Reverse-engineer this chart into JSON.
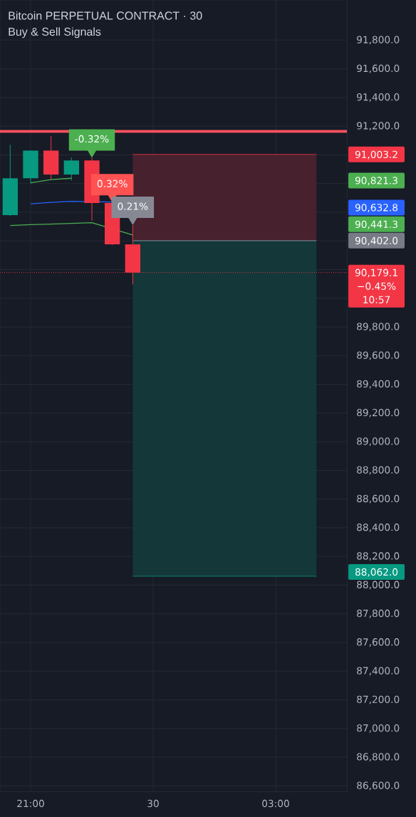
{
  "chart_data": {
    "type": "candlestick",
    "title": "Bitcoin PERPETUAL CONTRACT · 30",
    "subtitle": "Buy & Sell Signals",
    "categories": [
      null,
      "21:00",
      null,
      null,
      null,
      null,
      null,
      "30",
      null,
      null,
      null,
      null,
      null,
      "03:00",
      null,
      null,
      null
    ],
    "ohlc": [
      [
        90580,
        91070,
        90575,
        90837
      ],
      [
        90837,
        91032,
        90800,
        91030
      ],
      [
        91030,
        91130,
        90828,
        90863
      ],
      [
        90863,
        90982,
        90822,
        90961
      ],
      [
        90961,
        90980,
        90540,
        90664
      ],
      [
        90664,
        90668,
        90372,
        90376
      ],
      [
        90376,
        90510,
        90097,
        90179.1
      ],
      null,
      null,
      null,
      null,
      null,
      null,
      null,
      null,
      null,
      null
    ],
    "colors": [
      "#089981",
      "#089981",
      "#f23645",
      "#089981",
      "#f23645",
      "#f23645",
      "#f23645",
      null,
      null,
      null,
      null,
      null,
      null,
      null,
      null,
      null,
      null
    ],
    "series": [
      {
        "type": "line",
        "color": "#4caf50",
        "values": [
          null,
          90805,
          90828,
          90837,
          null,
          null,
          null,
          null,
          null,
          null,
          null,
          null,
          null,
          null,
          null,
          null,
          null
        ]
      },
      {
        "type": "line",
        "color": "#2962ff",
        "values": [
          null,
          90659,
          90669,
          90676,
          null,
          90671,
          null,
          null,
          null,
          null,
          null,
          null,
          null,
          null,
          null,
          null,
          null
        ]
      },
      {
        "type": "line",
        "color": "#4caf50",
        "values": [
          90507,
          90514,
          90517,
          90522,
          90527,
          null,
          90441.3,
          null,
          null,
          null,
          null,
          null,
          null,
          null,
          null,
          null,
          null
        ]
      },
      {
        "type": "line",
        "color": "#f23645",
        "values": [
          null,
          null,
          null,
          null,
          null,
          null,
          91003.2,
          91003.2,
          91003.2,
          91003.2,
          91003.2,
          91003.2,
          91003.2,
          91003.2,
          91003.2,
          91003.2,
          null
        ],
        "lower": [
          null,
          null,
          null,
          null,
          null,
          null,
          90402.0,
          90402.0,
          90402.0,
          90402.0,
          90402.0,
          90402.0,
          90402.0,
          90402.0,
          90402.0,
          90402.0,
          null
        ],
        "upper": [
          null,
          null,
          null,
          null,
          null,
          null,
          91003.2,
          91003.2,
          91003.2,
          91003.2,
          91003.2,
          91003.2,
          91003.2,
          91003.2,
          91003.2,
          91003.2,
          null
        ]
      },
      {
        "type": "line",
        "color": "#787b86",
        "values": [
          null,
          null,
          null,
          null,
          null,
          null,
          90402.0,
          90402.0,
          90402.0,
          90402.0,
          90402.0,
          90402.0,
          90402.0,
          90402.0,
          90402.0,
          90402.0,
          null
        ]
      },
      {
        "type": "line",
        "color": "#089981",
        "values": [
          null,
          null,
          null,
          null,
          null,
          null,
          88062.0,
          88062.0,
          88062.0,
          88062.0,
          88062.0,
          88062.0,
          88062.0,
          88062.0,
          88062.0,
          88062.0,
          null
        ],
        "lower": [
          null,
          null,
          null,
          null,
          null,
          null,
          88062.0,
          88062.0,
          88062.0,
          88062.0,
          88062.0,
          88062.0,
          88062.0,
          88062.0,
          88062.0,
          88062.0,
          null
        ],
        "upper": [
          null,
          null,
          null,
          null,
          null,
          null,
          90402.0,
          90402.0,
          90402.0,
          90402.0,
          90402.0,
          90402.0,
          90402.0,
          90402.0,
          90402.0,
          90402.0,
          null
        ]
      }
    ],
    "ylim": [
      86560,
      92080
    ],
    "yticks": [
      {
        "value": 86600,
        "label": "86,600.0"
      },
      {
        "value": 86800,
        "label": "86,800.0"
      },
      {
        "value": 87000,
        "label": "87,000.0"
      },
      {
        "value": 87200,
        "label": "87,200.0"
      },
      {
        "value": 87400,
        "label": "87,400.0"
      },
      {
        "value": 87600,
        "label": "87,600.0"
      },
      {
        "value": 87800,
        "label": "87,800.0"
      },
      {
        "value": 88000,
        "label": "88,000.0"
      },
      {
        "value": 88200,
        "label": "88,200.0"
      },
      {
        "value": 88400,
        "label": "88,400.0"
      },
      {
        "value": 88600,
        "label": "88,600.0"
      },
      {
        "value": 88800,
        "label": "88,800.0"
      },
      {
        "value": 89000,
        "label": "89,000.0"
      },
      {
        "value": 89200,
        "label": "89,200.0"
      },
      {
        "value": 89400,
        "label": "89,400.0"
      },
      {
        "value": 89600,
        "label": "89,600.0"
      },
      {
        "value": 89800,
        "label": "89,800.0"
      },
      {
        "value": 90000,
        "label": null
      },
      {
        "value": 90200,
        "label": null
      },
      {
        "value": 90400,
        "label": null
      },
      {
        "value": 90600,
        "label": null
      },
      {
        "value": 90800,
        "label": null
      },
      {
        "value": 91000,
        "label": null
      },
      {
        "value": 91200,
        "label": "91,200.0"
      },
      {
        "value": 91400,
        "label": "91,400.0"
      },
      {
        "value": 91600,
        "label": "91,600.0"
      },
      {
        "value": 91800,
        "label": "91,800.0"
      }
    ],
    "grid": true,
    "ref_lines": [
      {
        "axis": "y",
        "value": 91164,
        "color": "#f7525f",
        "line_style": "solid"
      },
      {
        "axis": "y",
        "value": 90179.1,
        "color": "#f23645",
        "line_style": "dotted",
        "label": "90,179.1"
      }
    ],
    "annotations": [
      {
        "text": "-0.32%",
        "y": 90980
      },
      {
        "text": "0.32%",
        "y": 90668
      },
      {
        "text": "0.21%",
        "y": 90510
      },
      "91,003.2",
      "90,821.3",
      "90,632.8",
      "90,441.3",
      "90,402.0",
      "−0.45%",
      "10:57",
      "88,062.0"
    ]
  }
}
